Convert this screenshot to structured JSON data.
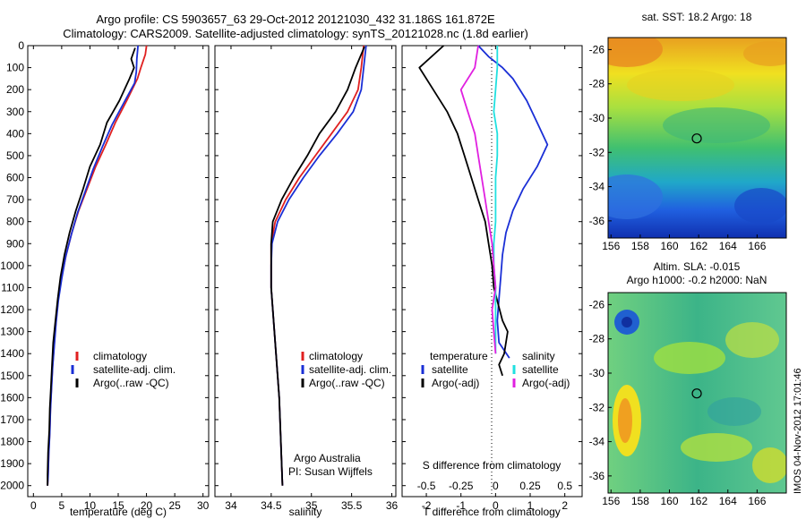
{
  "header": {
    "line1": "Argo profile: CS 5903657_63 29-Oct-2012 20121030_432 31.186S 161.872E",
    "line2": "Climatology: CARS2009. Satellite-adjusted climatology: synTS_20121028.nc (1.8d earlier)"
  },
  "footer": {
    "institution": "Argo Australia",
    "pi": "PI: Susan Wijffels",
    "stamp": "IMOS 04-Nov-2012 17:01:46"
  },
  "colors": {
    "climatology": "#e02020",
    "satellite": "#1a2fd6",
    "argo": "#000000",
    "sat_salinity": "#20e0e0",
    "argo_salinity": "#e020e0"
  },
  "chart_data": [
    {
      "type": "line",
      "xlabel": "temperature (deg C)",
      "xticks": [
        0,
        5,
        10,
        15,
        20,
        25,
        30
      ],
      "xlim": [
        -1,
        31
      ],
      "ylim": [
        0,
        2050
      ],
      "yticks": [
        0,
        100,
        200,
        300,
        400,
        500,
        600,
        700,
        800,
        900,
        1000,
        1100,
        1200,
        1300,
        1400,
        1500,
        1600,
        1700,
        1800,
        1900,
        2000
      ],
      "legend": [
        "climatology",
        "satellite-adj. clim.",
        "Argo(..raw -QC)"
      ],
      "series": [
        {
          "color": "#e02020",
          "values": [
            [
              20.0,
              0
            ],
            [
              19.8,
              40
            ],
            [
              19.0,
              100
            ],
            [
              18.4,
              150
            ],
            [
              16.5,
              250
            ],
            [
              14.5,
              350
            ],
            [
              12.8,
              450
            ],
            [
              11.0,
              550
            ],
            [
              9.5,
              650
            ],
            [
              8.0,
              750
            ],
            [
              6.8,
              850
            ],
            [
              5.8,
              950
            ],
            [
              5.0,
              1050
            ],
            [
              4.4,
              1150
            ],
            [
              4.0,
              1250
            ],
            [
              3.7,
              1350
            ],
            [
              3.4,
              1450
            ],
            [
              3.2,
              1550
            ],
            [
              3.0,
              1650
            ],
            [
              2.9,
              1750
            ],
            [
              2.7,
              1850
            ],
            [
              2.6,
              1950
            ],
            [
              2.5,
              2000
            ]
          ]
        },
        {
          "color": "#1a2fd6",
          "values": [
            [
              18.5,
              0
            ],
            [
              18.3,
              60
            ],
            [
              18.2,
              120
            ],
            [
              17.9,
              170
            ],
            [
              16.0,
              260
            ],
            [
              13.9,
              360
            ],
            [
              12.2,
              460
            ],
            [
              10.6,
              560
            ],
            [
              9.2,
              660
            ],
            [
              7.8,
              760
            ],
            [
              6.7,
              860
            ],
            [
              5.7,
              960
            ],
            [
              5.0,
              1060
            ],
            [
              4.4,
              1160
            ],
            [
              4.0,
              1260
            ],
            [
              3.7,
              1360
            ],
            [
              3.4,
              1460
            ],
            [
              3.2,
              1560
            ],
            [
              3.0,
              1660
            ],
            [
              2.9,
              1760
            ],
            [
              2.7,
              1860
            ],
            [
              2.6,
              1960
            ],
            [
              2.5,
              2000
            ]
          ]
        },
        {
          "color": "#000000",
          "values": [
            [
              18.0,
              10
            ],
            [
              17.3,
              60
            ],
            [
              17.8,
              100
            ],
            [
              17.0,
              150
            ],
            [
              15.2,
              250
            ],
            [
              13.0,
              350
            ],
            [
              11.8,
              450
            ],
            [
              10.0,
              550
            ],
            [
              8.8,
              650
            ],
            [
              7.5,
              750
            ],
            [
              6.4,
              850
            ],
            [
              5.5,
              950
            ],
            [
              4.8,
              1050
            ],
            [
              4.3,
              1150
            ],
            [
              3.9,
              1250
            ],
            [
              3.5,
              1350
            ],
            [
              3.3,
              1450
            ],
            [
              3.1,
              1550
            ],
            [
              2.9,
              1650
            ],
            [
              2.8,
              1750
            ],
            [
              2.6,
              1850
            ],
            [
              2.5,
              1950
            ],
            [
              2.5,
              2000
            ]
          ]
        }
      ]
    },
    {
      "type": "line",
      "xlabel": "salinity",
      "xticks": [
        34,
        34.5,
        35,
        35.5,
        36
      ],
      "xlim": [
        33.8,
        36.05
      ],
      "ylim": [
        0,
        2050
      ],
      "legend": [
        "climatology",
        "satellite-adj. clim.",
        "Argo(..raw -QC)"
      ],
      "series": [
        {
          "color": "#e02020",
          "values": [
            [
              35.65,
              0
            ],
            [
              35.62,
              100
            ],
            [
              35.58,
              200
            ],
            [
              35.45,
              300
            ],
            [
              35.25,
              400
            ],
            [
              35.05,
              500
            ],
            [
              34.85,
              600
            ],
            [
              34.68,
              700
            ],
            [
              34.55,
              800
            ],
            [
              34.5,
              900
            ],
            [
              34.5,
              1000
            ],
            [
              34.5,
              1100
            ],
            [
              34.52,
              1200
            ],
            [
              34.54,
              1300
            ],
            [
              34.56,
              1400
            ],
            [
              34.58,
              1500
            ],
            [
              34.6,
              1600
            ],
            [
              34.61,
              1700
            ],
            [
              34.62,
              1800
            ],
            [
              34.63,
              1900
            ],
            [
              34.64,
              2000
            ]
          ]
        },
        {
          "color": "#1a2fd6",
          "values": [
            [
              35.68,
              0
            ],
            [
              35.65,
              100
            ],
            [
              35.62,
              200
            ],
            [
              35.52,
              300
            ],
            [
              35.32,
              400
            ],
            [
              35.1,
              500
            ],
            [
              34.9,
              600
            ],
            [
              34.72,
              700
            ],
            [
              34.58,
              800
            ],
            [
              34.51,
              900
            ],
            [
              34.5,
              1000
            ],
            [
              34.5,
              1100
            ],
            [
              34.52,
              1200
            ],
            [
              34.54,
              1300
            ],
            [
              34.56,
              1400
            ],
            [
              34.58,
              1500
            ],
            [
              34.6,
              1600
            ],
            [
              34.61,
              1700
            ],
            [
              34.62,
              1800
            ],
            [
              34.63,
              1900
            ],
            [
              34.64,
              2000
            ]
          ]
        },
        {
          "color": "#000000",
          "values": [
            [
              35.66,
              5
            ],
            [
              35.55,
              100
            ],
            [
              35.45,
              200
            ],
            [
              35.3,
              300
            ],
            [
              35.1,
              400
            ],
            [
              34.95,
              500
            ],
            [
              34.78,
              600
            ],
            [
              34.63,
              700
            ],
            [
              34.52,
              800
            ],
            [
              34.5,
              900
            ],
            [
              34.5,
              1000
            ],
            [
              34.5,
              1100
            ],
            [
              34.52,
              1200
            ],
            [
              34.54,
              1300
            ],
            [
              34.56,
              1400
            ],
            [
              34.58,
              1500
            ],
            [
              34.6,
              1600
            ],
            [
              34.61,
              1700
            ],
            [
              34.62,
              1800
            ],
            [
              34.63,
              1900
            ],
            [
              34.64,
              2000
            ]
          ]
        }
      ]
    },
    {
      "type": "line",
      "xlabel": "T difference from climatology",
      "x2label": "S difference from climatology",
      "xticks": [
        -2,
        -1,
        0,
        1,
        2
      ],
      "xlim": [
        -2.7,
        2.5
      ],
      "x2ticks": [
        "-0.5",
        "-0.25",
        "0",
        "0.25",
        "0.5"
      ],
      "ylim": [
        0,
        2050
      ],
      "legend_left_title": "temperature",
      "legend_right_title": "salinity",
      "legend_left": [
        "satellite",
        "Argo(-adj)"
      ],
      "legend_right": [
        "satellite",
        "Argo(-adj)"
      ],
      "series": [
        {
          "color": "#1a2fd6",
          "values": [
            [
              -0.5,
              0
            ],
            [
              -0.2,
              50
            ],
            [
              0.2,
              100
            ],
            [
              0.5,
              150
            ],
            [
              0.9,
              250
            ],
            [
              1.2,
              350
            ],
            [
              1.5,
              450
            ],
            [
              1.2,
              550
            ],
            [
              0.8,
              650
            ],
            [
              0.5,
              750
            ],
            [
              0.3,
              850
            ],
            [
              0.2,
              950
            ],
            [
              0.15,
              1050
            ],
            [
              0.1,
              1150
            ],
            [
              0.05,
              1250
            ],
            [
              0.1,
              1350
            ],
            [
              0.4,
              1420
            ]
          ]
        },
        {
          "color": "#000000",
          "values": [
            [
              -1.5,
              0
            ],
            [
              -2.2,
              100
            ],
            [
              -1.8,
              200
            ],
            [
              -1.4,
              300
            ],
            [
              -1.1,
              400
            ],
            [
              -0.9,
              500
            ],
            [
              -0.7,
              600
            ],
            [
              -0.5,
              700
            ],
            [
              -0.3,
              800
            ],
            [
              -0.2,
              900
            ],
            [
              -0.1,
              1000
            ],
            [
              -0.05,
              1100
            ],
            [
              0.2,
              1250
            ],
            [
              0.35,
              1300
            ],
            [
              0.25,
              1400
            ],
            [
              0.1,
              1450
            ],
            [
              0.2,
              1500
            ]
          ]
        },
        {
          "color": "#20e0e0",
          "values": [
            [
              0.05,
              0
            ],
            [
              0.05,
              100
            ],
            [
              0.0,
              200
            ],
            [
              -0.05,
              300
            ],
            [
              0.05,
              400
            ],
            [
              0.05,
              500
            ],
            [
              0.0,
              600
            ],
            [
              0.0,
              700
            ],
            [
              0.0,
              800
            ],
            [
              -0.05,
              900
            ],
            [
              -0.05,
              1000
            ],
            [
              0.0,
              1100
            ],
            [
              0.0,
              1200
            ],
            [
              0.0,
              1300
            ],
            [
              0.0,
              1400
            ]
          ]
        },
        {
          "color": "#e020e0",
          "values": [
            [
              -0.5,
              0
            ],
            [
              -0.6,
              100
            ],
            [
              -1.0,
              200
            ],
            [
              -0.8,
              300
            ],
            [
              -0.6,
              400
            ],
            [
              -0.5,
              500
            ],
            [
              -0.4,
              600
            ],
            [
              -0.3,
              700
            ],
            [
              -0.2,
              800
            ],
            [
              -0.1,
              900
            ],
            [
              -0.05,
              1000
            ],
            [
              0.0,
              1100
            ],
            [
              -0.1,
              1200
            ],
            [
              -0.05,
              1300
            ],
            [
              0.0,
              1400
            ]
          ]
        }
      ]
    },
    {
      "type": "heatmap",
      "title": "sat. SST: 18.2  Argo: 18",
      "xticks": [
        156,
        158,
        160,
        162,
        164,
        166
      ],
      "yticks": [
        -26,
        -28,
        -30,
        -32,
        -34,
        -36
      ],
      "xlim": [
        155.8,
        168
      ],
      "ylim": [
        -37,
        -25.3
      ],
      "marker": [
        161.872,
        -31.186
      ]
    },
    {
      "type": "heatmap",
      "title": "Altim. SLA: -0.015",
      "subtitle": "Argo h1000: -0.2 h2000: NaN",
      "xticks": [
        156,
        158,
        160,
        162,
        164,
        166
      ],
      "yticks": [
        -26,
        -28,
        -30,
        -32,
        -34,
        -36
      ],
      "xlim": [
        155.8,
        168
      ],
      "ylim": [
        -37,
        -25.3
      ],
      "marker": [
        161.872,
        -31.186
      ]
    }
  ]
}
